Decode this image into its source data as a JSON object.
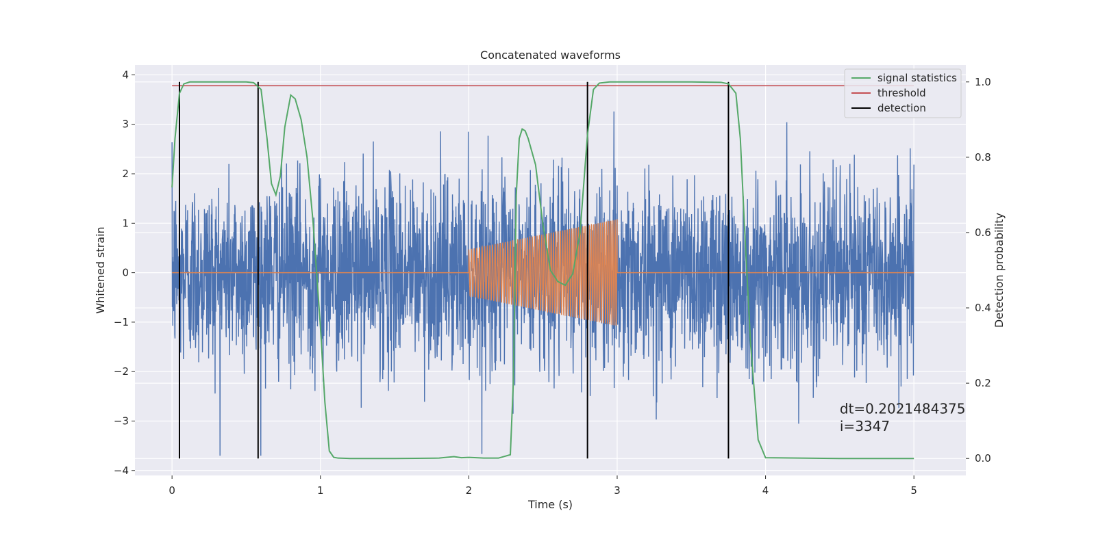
{
  "chart_data": {
    "type": "line",
    "title": "Concatenated waveforms",
    "xlabel": "Time (s)",
    "ylabel_left": "Whitened strain",
    "ylabel_right": "Detection probability",
    "xlim": [
      -0.25,
      5.35
    ],
    "ylim_left": [
      -4.1,
      4.2
    ],
    "ylim_right": [
      -0.045,
      1.045
    ],
    "x_ticks": [
      0,
      1,
      2,
      3,
      4,
      5
    ],
    "x_tick_labels": [
      "0",
      "1",
      "2",
      "3",
      "4",
      "5"
    ],
    "y_left_ticks": [
      -4,
      -3,
      -2,
      -1,
      0,
      1,
      2,
      3,
      4
    ],
    "y_left_tick_labels": [
      "−4",
      "−3",
      "−2",
      "−1",
      "0",
      "1",
      "2",
      "3",
      "4"
    ],
    "y_right_ticks": [
      0,
      0.2,
      0.4,
      0.6,
      0.8,
      1.0
    ],
    "y_right_tick_labels": [
      "0.0",
      "0.2",
      "0.4",
      "0.6",
      "0.8",
      "1.0"
    ],
    "grid": true,
    "legend_position": "top-right",
    "series": [
      {
        "name": "",
        "axis": "left",
        "color": "#4c72b0",
        "description_kind": "noise",
        "x_range": [
          0,
          5
        ],
        "amplitude_range": [
          -3.7,
          3.8
        ]
      },
      {
        "name": "",
        "axis": "left",
        "color": "#dd8452",
        "description_kind": "chirp",
        "zero_before": [
          0,
          2
        ],
        "chirp_range": [
          2,
          3
        ],
        "amplitude_start": 0.47,
        "amplitude_end": 1.08,
        "zero_after": [
          3,
          5
        ]
      },
      {
        "name": "signal statistics",
        "axis": "right",
        "color": "#55a868",
        "x": [
          0.0,
          0.02,
          0.05,
          0.08,
          0.12,
          0.2,
          0.4,
          0.5,
          0.55,
          0.6,
          0.64,
          0.67,
          0.7,
          0.73,
          0.76,
          0.8,
          0.83,
          0.87,
          0.91,
          0.95,
          1.0,
          1.03,
          1.06,
          1.09,
          1.12,
          1.2,
          1.5,
          1.8,
          1.9,
          1.95,
          2.0,
          2.05,
          2.1,
          2.2,
          2.28,
          2.3,
          2.32,
          2.34,
          2.36,
          2.38,
          2.4,
          2.45,
          2.5,
          2.55,
          2.6,
          2.65,
          2.7,
          2.75,
          2.8,
          2.84,
          2.88,
          2.95,
          3.2,
          3.5,
          3.7,
          3.75,
          3.8,
          3.83,
          3.86,
          3.9,
          3.95,
          4.0,
          4.5,
          5.0
        ],
        "y": [
          0.72,
          0.85,
          0.97,
          0.995,
          1.0,
          1.0,
          1.0,
          1.0,
          0.998,
          0.98,
          0.85,
          0.73,
          0.7,
          0.75,
          0.88,
          0.965,
          0.955,
          0.9,
          0.8,
          0.63,
          0.35,
          0.15,
          0.02,
          0.003,
          0.001,
          0.0,
          0.0,
          0.001,
          0.005,
          0.002,
          0.003,
          0.002,
          0.001,
          0.001,
          0.01,
          0.2,
          0.7,
          0.85,
          0.875,
          0.87,
          0.85,
          0.78,
          0.62,
          0.5,
          0.47,
          0.46,
          0.49,
          0.6,
          0.86,
          0.98,
          0.997,
          1.0,
          1.0,
          1.0,
          0.999,
          0.995,
          0.97,
          0.85,
          0.6,
          0.3,
          0.05,
          0.002,
          0.0,
          0.0
        ]
      },
      {
        "name": "threshold",
        "axis": "right",
        "color": "#c44e52",
        "x": [
          0,
          5
        ],
        "y": [
          0.99,
          0.99
        ]
      },
      {
        "name": "detection",
        "axis": "right",
        "color": "#000000",
        "x_positions": [
          0.05,
          0.58,
          2.8,
          3.75
        ],
        "y_range": [
          0,
          1
        ]
      }
    ],
    "annotations": [
      {
        "text": "dt=0.2021484375",
        "x": 4.5,
        "y": -2.85
      },
      {
        "text": " i=3347",
        "x": 4.5,
        "y": -3.2
      }
    ]
  }
}
